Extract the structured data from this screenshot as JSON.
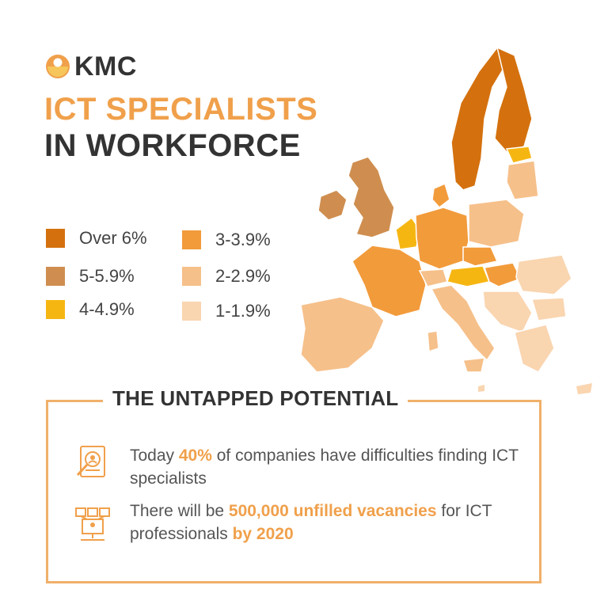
{
  "brand": {
    "name": "KMC",
    "accent": "#f0a04b"
  },
  "title": {
    "line1": "ICT SPECIALISTS",
    "line2": "IN WORKFORCE"
  },
  "legend": [
    {
      "label": "Over 6%",
      "color": "#d4710e"
    },
    {
      "label": "5-5.9%",
      "color": "#cf8e4f"
    },
    {
      "label": "4-4.9%",
      "color": "#f6b612"
    },
    {
      "label": "3-3.9%",
      "color": "#f29b3b"
    },
    {
      "label": "2-2.9%",
      "color": "#f6c08a"
    },
    {
      "label": "1-1.9%",
      "color": "#f9d5b0"
    }
  ],
  "potential": {
    "heading": "THE UNTAPPED POTENTIAL",
    "fact1": {
      "pre": "Today ",
      "highlight": "40%",
      "post": " of companies have difficulties finding ICT specialists"
    },
    "fact2": {
      "pre": "There will be ",
      "highlight1": "500,000 unfilled vacancies",
      "mid": " for ICT professionals ",
      "highlight2": "by 2020"
    }
  },
  "icons": {
    "fact1": "search-profile-icon",
    "fact2": "network-computer-icon"
  }
}
